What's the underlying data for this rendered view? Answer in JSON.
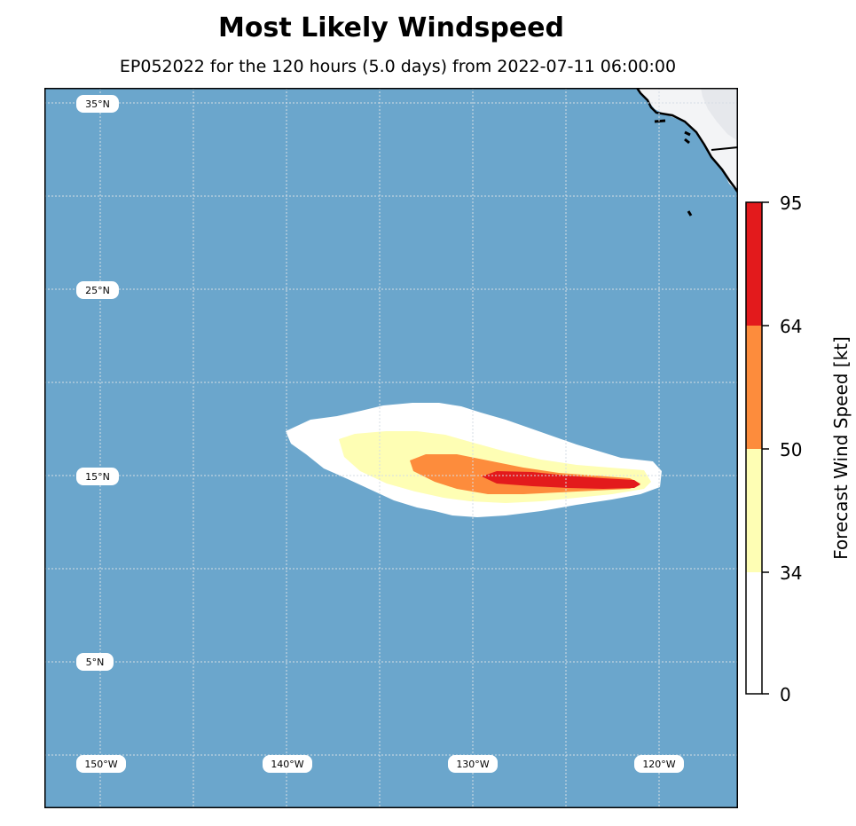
{
  "title": "Most Likely Windspeed",
  "subtitle": "EP052022 for the 120 hours (5.0 days) from 2022-07-11 06:00:00",
  "map": {
    "lat_labels": [
      "35°N",
      "25°N",
      "15°N",
      "5°N"
    ],
    "lon_labels": [
      "150°W",
      "140°W",
      "130°W",
      "120°W"
    ],
    "colors": {
      "ocean": "#6ba6cc",
      "land": "#f3f4f6",
      "band_34_50": "#fefeb4",
      "band_50_64": "#fd8c3c",
      "band_64_95": "#e31a1c",
      "band_0_34": "#ffffff"
    }
  },
  "colorbar": {
    "label": "Forecast Wind Speed [kt]",
    "ticks": [
      "95",
      "64",
      "50",
      "34",
      "0"
    ]
  }
}
